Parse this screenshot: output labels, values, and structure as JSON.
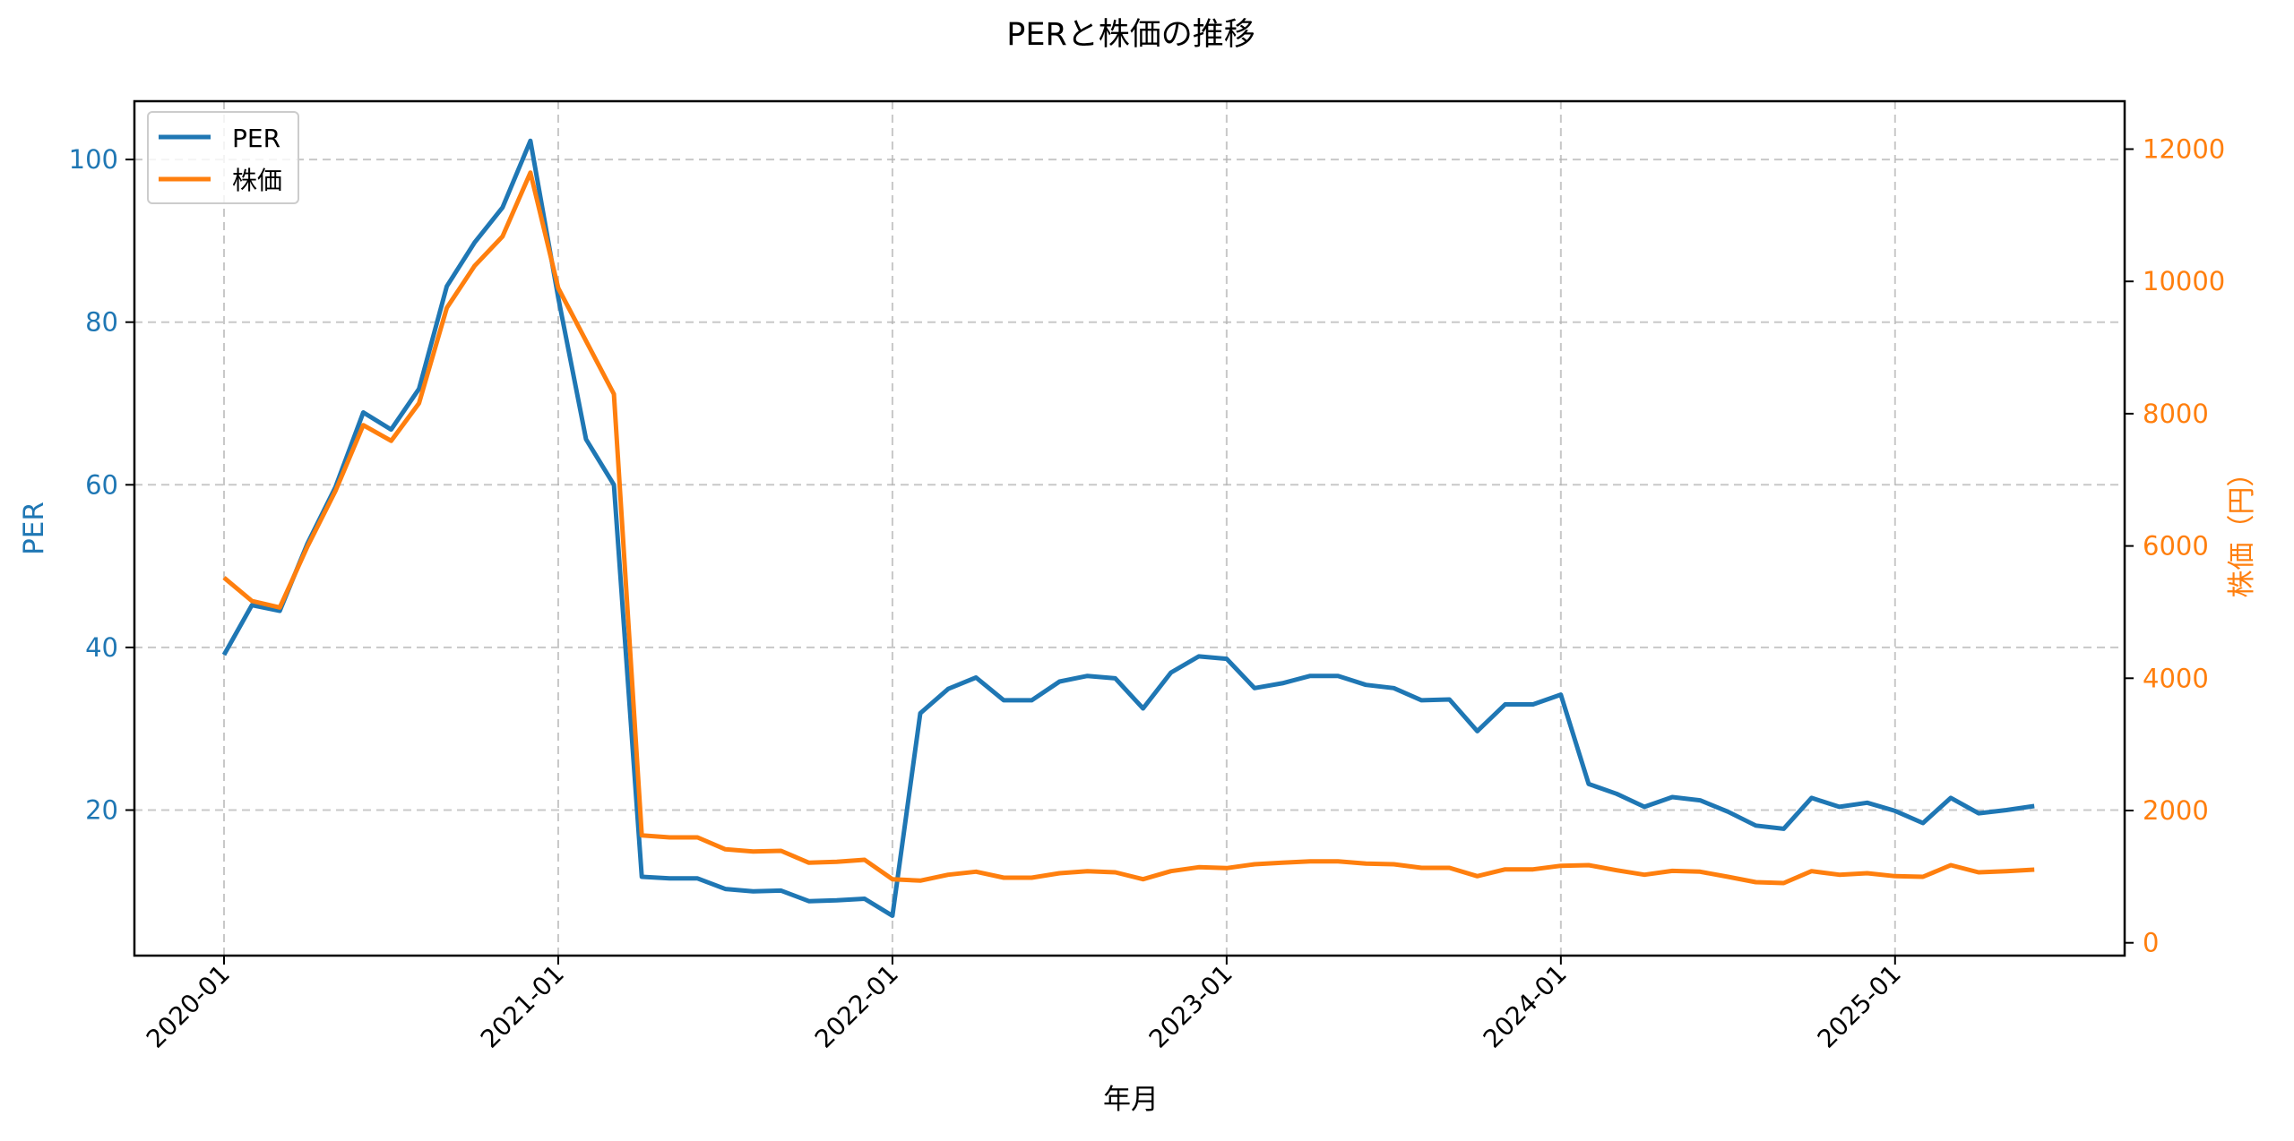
{
  "chart_data": {
    "type": "line",
    "title": "PERと株価の推移",
    "xlabel": "年月",
    "ylabel": "PER",
    "ylabel_right": "株価（円）",
    "x_tick_labels": [
      "2020-01",
      "2021-01",
      "2022-01",
      "2023-01",
      "2024-01",
      "2025-01"
    ],
    "y_ticks_left": [
      20,
      40,
      60,
      80,
      100
    ],
    "y_ticks_right": [
      0,
      2000,
      4000,
      6000,
      8000,
      10000,
      12000
    ],
    "ylim_left": [
      3,
      107
    ],
    "ylim_right": [
      -100,
      12700
    ],
    "grid": true,
    "legend_position": "upper left",
    "colors": {
      "PER": "#1f77b4",
      "株価": "#ff7f0e"
    },
    "x": [
      "2020-01",
      "2020-02",
      "2020-03",
      "2020-04",
      "2020-05",
      "2020-06",
      "2020-07",
      "2020-08",
      "2020-09",
      "2020-10",
      "2020-11",
      "2020-12",
      "2021-01",
      "2021-02",
      "2021-03",
      "2021-04",
      "2021-05",
      "2021-06",
      "2021-07",
      "2021-08",
      "2021-09",
      "2021-10",
      "2021-11",
      "2021-12",
      "2022-01",
      "2022-02",
      "2022-03",
      "2022-04",
      "2022-05",
      "2022-06",
      "2022-07",
      "2022-08",
      "2022-09",
      "2022-10",
      "2022-11",
      "2022-12",
      "2023-01",
      "2023-02",
      "2023-03",
      "2023-04",
      "2023-05",
      "2023-06",
      "2023-07",
      "2023-08",
      "2023-09",
      "2023-10",
      "2023-11",
      "2023-12",
      "2024-01",
      "2024-02",
      "2024-03",
      "2024-04",
      "2024-05",
      "2024-06",
      "2024-07",
      "2024-08",
      "2024-09",
      "2024-10",
      "2024-11",
      "2024-12",
      "2025-01",
      "2025-02",
      "2025-03",
      "2025-04",
      "2025-05",
      "2025-06"
    ],
    "series": [
      {
        "name": "PER",
        "axis": "left",
        "values": [
          39.1,
          45.2,
          44.5,
          52.8,
          59.7,
          68.9,
          66.8,
          71.8,
          84.4,
          89.8,
          94.1,
          102.3,
          83.0,
          65.6,
          60.0,
          11.8,
          11.6,
          11.6,
          10.3,
          10.0,
          10.1,
          8.8,
          8.9,
          9.1,
          7.0,
          31.9,
          34.9,
          36.3,
          33.5,
          33.5,
          35.8,
          36.5,
          36.2,
          32.5,
          36.9,
          38.9,
          38.6,
          35.0,
          35.6,
          36.5,
          36.5,
          35.4,
          35.0,
          33.5,
          33.6,
          29.7,
          33.0,
          33.0,
          34.2,
          23.2,
          22.0,
          20.4,
          21.6,
          21.2,
          19.8,
          18.1,
          17.7,
          21.5,
          20.4,
          20.9,
          19.9,
          18.4,
          21.5,
          19.6,
          20.0,
          20.5
        ]
      },
      {
        "name": "株価",
        "axis": "right",
        "values": [
          5521,
          5169,
          5070,
          5995,
          6830,
          7827,
          7590,
          8158,
          9599,
          10236,
          10680,
          11645,
          9898,
          9100,
          8297,
          1625,
          1594,
          1594,
          1414,
          1381,
          1391,
          1210,
          1224,
          1255,
          961,
          940,
          1029,
          1075,
          984,
          984,
          1052,
          1083,
          1066,
          961,
          1083,
          1143,
          1129,
          1188,
          1210,
          1232,
          1232,
          1197,
          1188,
          1133,
          1133,
          1007,
          1110,
          1110,
          1165,
          1174,
          1097,
          1029,
          1088,
          1075,
          998,
          917,
          903,
          1083,
          1029,
          1052,
          1007,
          998,
          1174,
          1066,
          1083,
          1106
        ]
      }
    ]
  }
}
